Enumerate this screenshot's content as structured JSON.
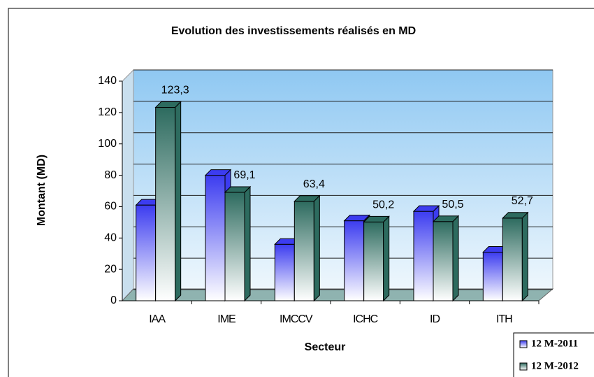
{
  "chart_data": {
    "type": "bar3d",
    "title": "Evolution des investissements réalisés en MD",
    "x_label": "Secteur",
    "y_label": "Montant (MD)",
    "categories": [
      "IAA",
      "IME",
      "IMCCV",
      "ICHC",
      "ID",
      "ITH"
    ],
    "series": [
      {
        "name": "12 M-2011",
        "color": "#3c3cf0",
        "values": [
          61,
          80,
          36,
          51,
          57,
          31
        ]
      },
      {
        "name": "12 M-2012",
        "color": "#2d6b5f",
        "values": [
          123.3,
          69.1,
          63.4,
          50.2,
          50.5,
          52.7
        ],
        "value_labels": [
          "123,3",
          "69,1",
          "63,4",
          "50,2",
          "50,5",
          "52,7"
        ]
      }
    ],
    "ylim": [
      0,
      140
    ],
    "yticks": [
      0,
      20,
      40,
      60,
      80,
      100,
      120,
      140
    ],
    "grid": true,
    "legend": "bottom-right"
  }
}
